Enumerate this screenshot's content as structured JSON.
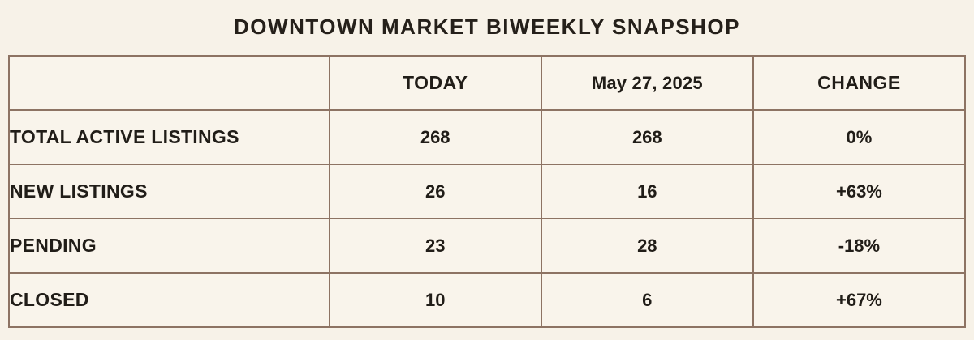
{
  "title": "DOWNTOWN MARKET BIWEEKLY SNAPSHOP",
  "colors": {
    "page_background": "#f7f2e8",
    "cell_background": "#f9f4eb",
    "corner_cell_background": "#856a58",
    "border": "#8d7363",
    "text": "#211d18"
  },
  "table": {
    "header": {
      "corner": "",
      "col_today": "TODAY",
      "col_date": "May 27, 2025",
      "col_change": "CHANGE"
    },
    "rows": [
      {
        "label": "TOTAL ACTIVE LISTINGS",
        "today": "268",
        "prior": "268",
        "change": "0%"
      },
      {
        "label": "NEW LISTINGS",
        "today": "26",
        "prior": "16",
        "change": "+63%"
      },
      {
        "label": "PENDING",
        "today": "23",
        "prior": "28",
        "change": "-18%"
      },
      {
        "label": "CLOSED",
        "today": "10",
        "prior": "6",
        "change": "+67%"
      }
    ]
  },
  "chart_data": {
    "type": "table",
    "title": "DOWNTOWN MARKET BIWEEKLY SNAPSHOP",
    "columns": [
      "",
      "TODAY",
      "May 27, 2025",
      "CHANGE"
    ],
    "categories": [
      "TOTAL ACTIVE LISTINGS",
      "NEW LISTINGS",
      "PENDING",
      "CLOSED"
    ],
    "series": [
      {
        "name": "TODAY",
        "values": [
          268,
          26,
          23,
          10
        ]
      },
      {
        "name": "May 27, 2025",
        "values": [
          268,
          16,
          28,
          6
        ]
      },
      {
        "name": "CHANGE",
        "values": [
          "0%",
          "+63%",
          "-18%",
          "+67%"
        ]
      }
    ]
  }
}
